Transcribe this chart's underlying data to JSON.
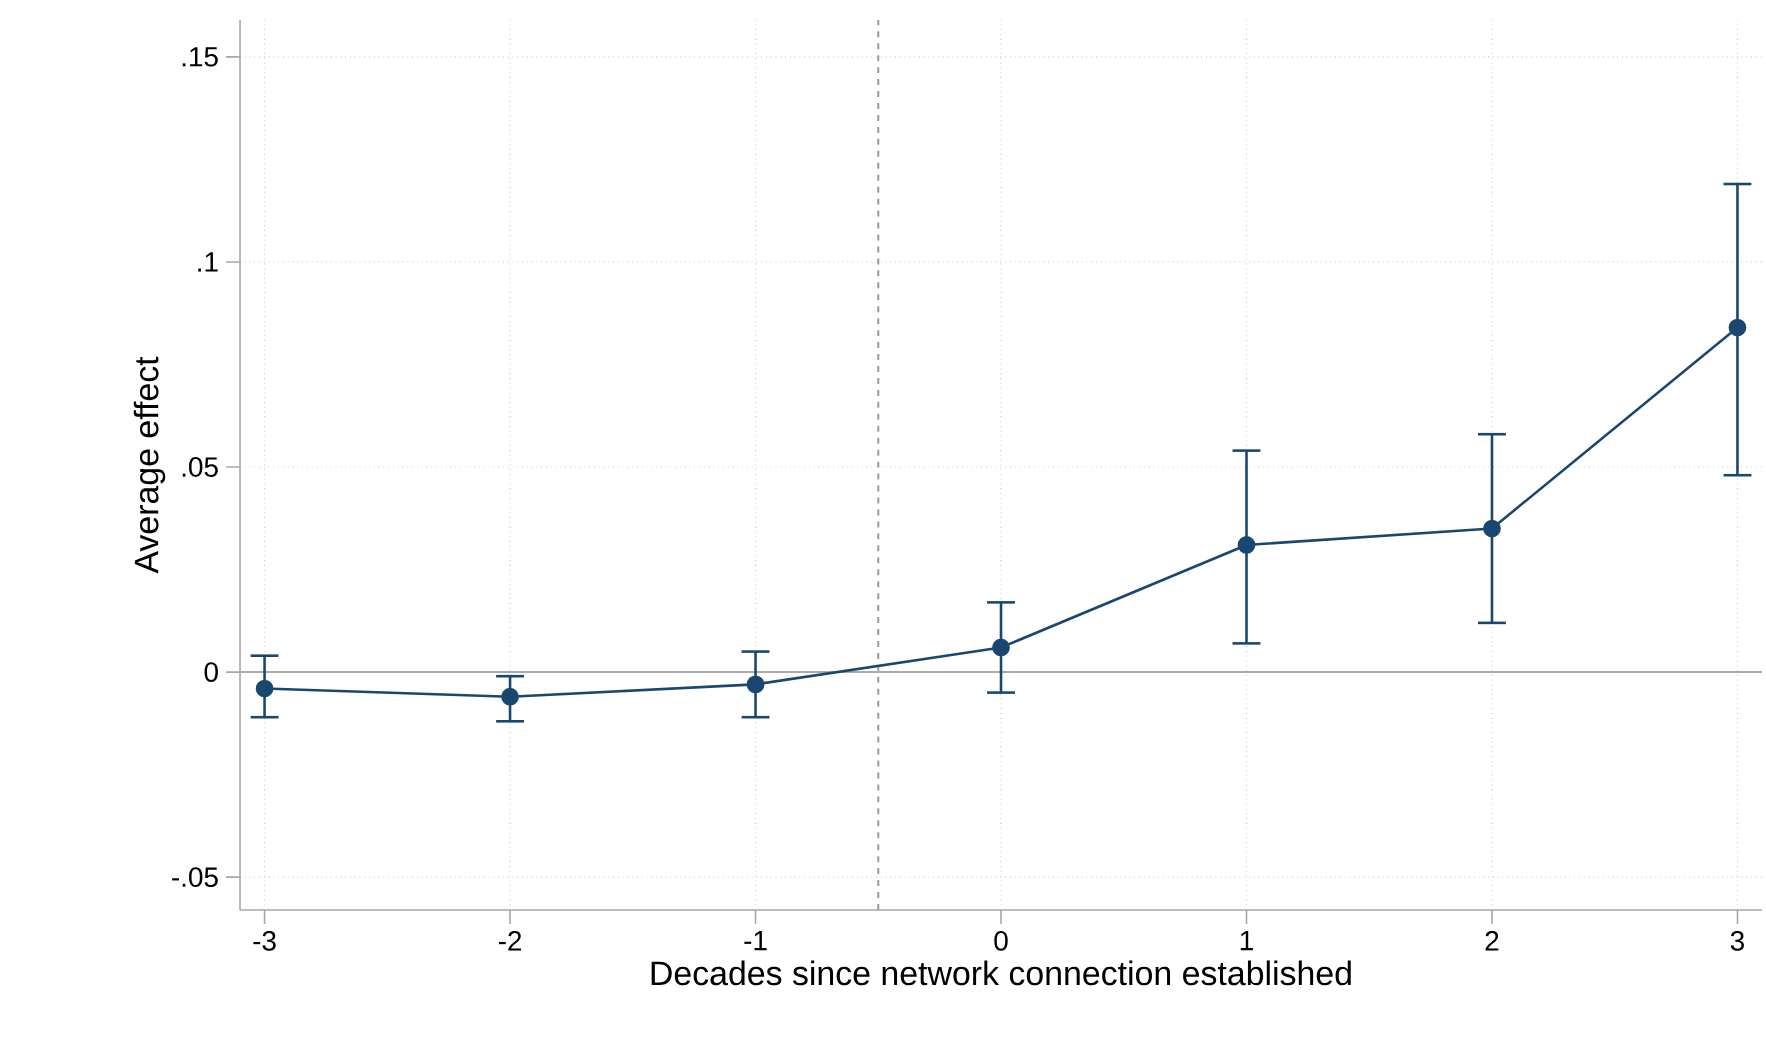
{
  "chart_data": {
    "type": "line",
    "xlabel": "Decades since network connection established",
    "ylabel": "Average effect",
    "x": [
      -3,
      -2,
      -1,
      0,
      1,
      2,
      3
    ],
    "series": [
      {
        "color": "#1a476f",
        "values": [
          -0.004,
          -0.006,
          -0.003,
          0.006,
          0.031,
          0.035,
          0.084
        ],
        "errors": [
          [
            -0.011,
            0.004
          ],
          [
            -0.012,
            -0.001
          ],
          [
            -0.011,
            0.005
          ],
          [
            -0.005,
            0.017
          ],
          [
            0.007,
            0.054
          ],
          [
            0.012,
            0.058
          ],
          [
            0.048,
            0.119
          ]
        ]
      }
    ],
    "xlim": [
      -3.1,
      3.1
    ],
    "ylim": [
      -0.058,
      0.159
    ],
    "xticks": [
      -3,
      -2,
      -1,
      0,
      1,
      2,
      3
    ],
    "yticks": [
      {
        "value": -0.05,
        "label": "-.05"
      },
      {
        "value": 0,
        "label": "0"
      },
      {
        "value": 0.05,
        "label": ".05"
      },
      {
        "value": 0.1,
        "label": ".1"
      },
      {
        "value": 0.15,
        "label": ".15"
      }
    ],
    "ref_lines": [
      {
        "axis": "x",
        "value": -0.5,
        "color": "#999999",
        "line_style": "dashed"
      },
      {
        "axis": "y",
        "value": 0,
        "color": "#aaaaaa",
        "line_style": "solid"
      }
    ],
    "grid": true,
    "marker": "circle",
    "line_style": "solid"
  }
}
